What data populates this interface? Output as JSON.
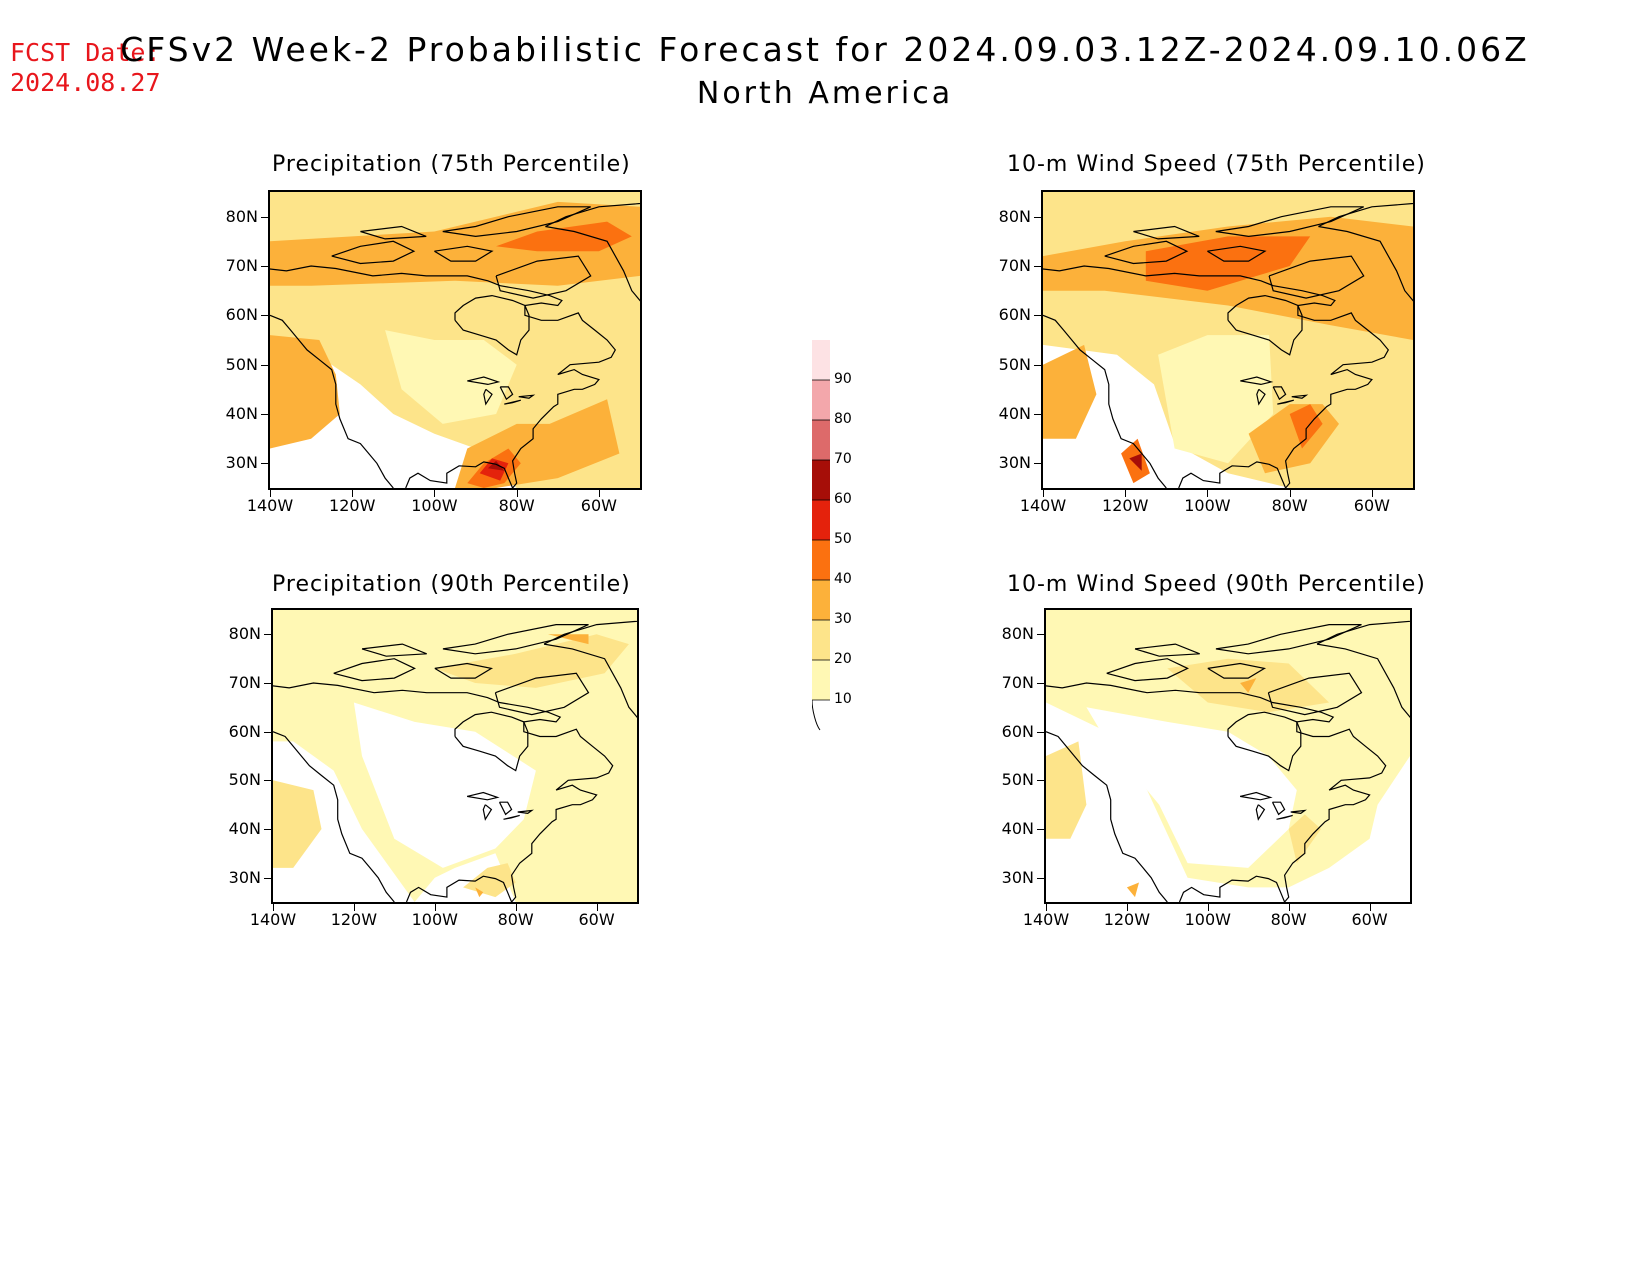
{
  "header": {
    "fcst_label": "FCST Date:",
    "fcst_date": "2024.08.27",
    "title": "CFSv2 Week-2 Probabilistic Forecast for 2024.09.03.12Z-2024.09.10.06Z",
    "subtitle": "North America"
  },
  "axes": {
    "lat_ticks": [
      "80N",
      "70N",
      "60N",
      "50N",
      "40N",
      "30N"
    ],
    "lon_ticks": [
      "140W",
      "120W",
      "100W",
      "80W",
      "60W"
    ]
  },
  "panels": [
    {
      "id": "precip75",
      "title": "Precipitation (75th Percentile)"
    },
    {
      "id": "wind75",
      "title": "10-m Wind Speed (75th Percentile)"
    },
    {
      "id": "precip90",
      "title": "Precipitation (90th Percentile)"
    },
    {
      "id": "wind90",
      "title": "10-m Wind Speed (90th Percentile)"
    }
  ],
  "colorbar": {
    "levels": [
      "10",
      "20",
      "30",
      "40",
      "50",
      "60",
      "70",
      "80",
      "90"
    ],
    "colors": [
      "#fff8b4",
      "#fde48a",
      "#fcb13a",
      "#fb7110",
      "#e4220c",
      "#a60e08",
      "#dd6a6a",
      "#f3a7ab",
      "#fde2e4"
    ]
  }
}
